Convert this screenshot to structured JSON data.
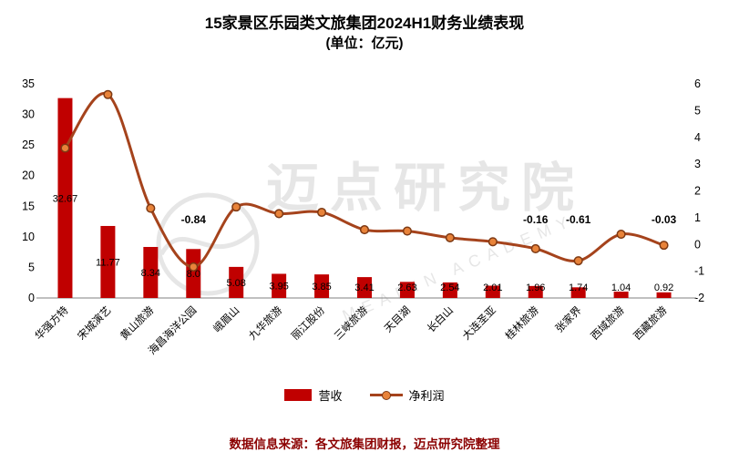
{
  "title": "15家景区乐园类文旅集团2024H1财务业绩表现",
  "subtitle": "(单位：亿元)",
  "footer": "数据信息来源：各文旅集团财报，迈点研究院整理",
  "watermark": {
    "text": "迈点研究院",
    "subtext": "MEADIN ACADEMY"
  },
  "colors": {
    "bar": "#c00000",
    "line": "#a5431c",
    "marker_fill": "#e8833a",
    "marker_stroke": "#7d3914",
    "footer": "#8b0000",
    "axis_line": "#808080",
    "text": "#000000"
  },
  "chart_data": {
    "type": "bar+line",
    "title": "15家景区乐园类文旅集团2024H1财务业绩表现",
    "subtitle": "(单位：亿元)",
    "categories": [
      "华强方特",
      "宋城演艺",
      "黄山旅游",
      "海昌海洋公园",
      "峨眉山",
      "九华旅游",
      "丽江股份",
      "三峡旅游",
      "天目湖",
      "长白山",
      "大连圣亚",
      "桂林旅游",
      "张家界",
      "西域旅游",
      "西藏旅游"
    ],
    "left_axis": {
      "min": 0,
      "max": 35,
      "step": 5
    },
    "right_axis": {
      "min": -2,
      "max": 6,
      "step": 1
    },
    "grid": false,
    "legend_position": "bottom",
    "series": [
      {
        "name": "营收",
        "type": "bar",
        "axis": "left",
        "values": [
          32.67,
          11.77,
          8.34,
          8.0,
          5.08,
          3.95,
          3.85,
          3.41,
          2.63,
          2.54,
          2.01,
          1.96,
          1.74,
          1.04,
          0.92
        ],
        "labels": [
          "32.67",
          "11.77",
          "8.34",
          "8.0",
          "5.08",
          "3.95",
          "3.85",
          "3.41",
          "2.63",
          "2.54",
          "2.01",
          "1.96",
          "1.74",
          "1.04",
          "0.92"
        ]
      },
      {
        "name": "净利润",
        "type": "line",
        "axis": "right",
        "values": [
          3.6,
          5.6,
          1.35,
          -0.84,
          1.4,
          1.15,
          1.2,
          0.55,
          0.5,
          0.25,
          0.1,
          -0.16,
          -0.61,
          0.38,
          -0.03
        ],
        "point_labels": [
          {
            "index": 3,
            "label": "-0.84"
          },
          {
            "index": 11,
            "label": "-0.16"
          },
          {
            "index": 12,
            "label": "-0.61"
          },
          {
            "index": 14,
            "label": "-0.03"
          }
        ]
      }
    ]
  }
}
